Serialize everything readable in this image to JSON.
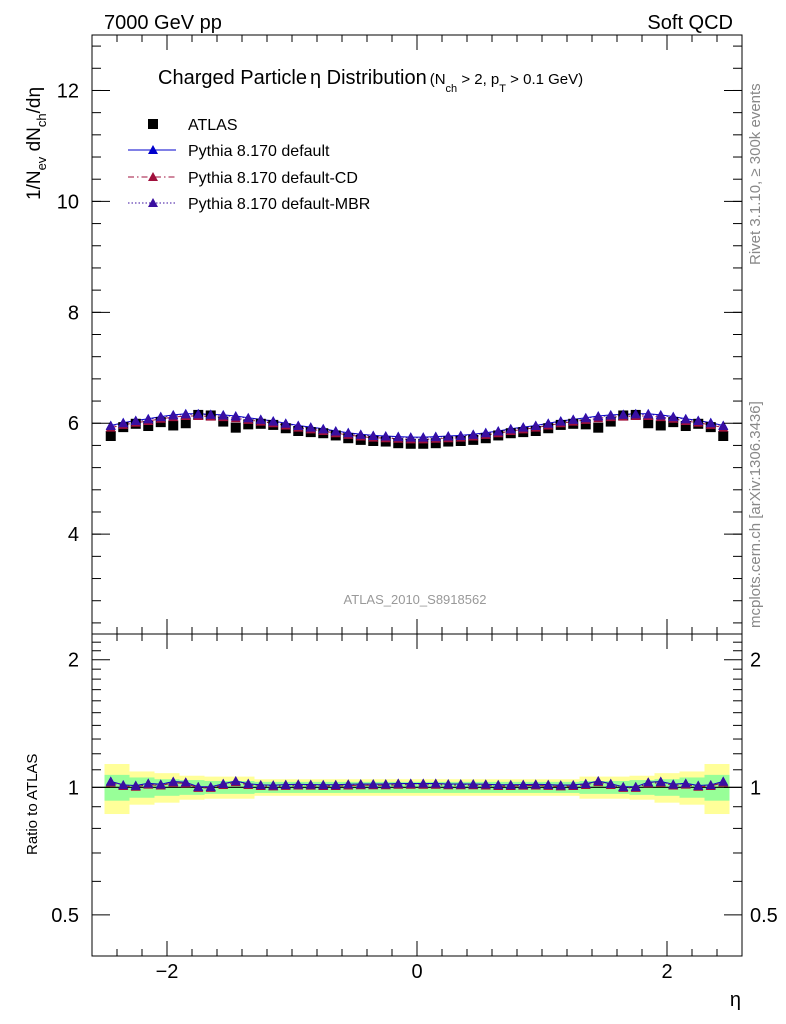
{
  "header": {
    "left": "7000 GeV pp",
    "right": "Soft QCD"
  },
  "title": {
    "main_a": "Charged Particle",
    "main_eta": "η",
    "main_b": " Distribution",
    "cond_open": "(N",
    "cond_ch_sub": "ch",
    "cond_mid": " > 2, p",
    "cond_t_sub": "T",
    "cond_close": " > 0.1 GeV)"
  },
  "ylabel_main": {
    "p1": "1/N",
    "s1": "ev",
    "p2": " dN",
    "s2": "ch",
    "p3": "/dη"
  },
  "ylabel_ratio": "Ratio to ATLAS",
  "xlabel": "η",
  "right_label_top": "Rivet 3.1.10, ≥ 300k events",
  "right_label_bottom": "mcplots.cern.ch [arXiv:1306.3436]",
  "analysis_label": "ATLAS_2010_S8918562",
  "legend": [
    {
      "label": "ATLAS",
      "marker": "square",
      "color": "#000000",
      "line": "none"
    },
    {
      "label": "Pythia 8.170 default",
      "marker": "triangle",
      "color": "#0000cc",
      "line": "solid"
    },
    {
      "label": "Pythia 8.170 default-CD",
      "marker": "triangle",
      "color": "#a0103c",
      "line": "dashdot"
    },
    {
      "label": "Pythia 8.170 default-MBR",
      "marker": "triangle",
      "color": "#3a0fa0",
      "line": "dotted"
    }
  ],
  "colors": {
    "band_inner": "#98ff98",
    "band_outer": "#ffff99",
    "atlas": "#000000",
    "default": "#0000cc",
    "cd": "#a0103c",
    "mbr": "#3a0fa0"
  },
  "chart_data": {
    "type": "scatter",
    "x": [
      -2.45,
      -2.35,
      -2.25,
      -2.15,
      -2.05,
      -1.95,
      -1.85,
      -1.75,
      -1.65,
      -1.55,
      -1.45,
      -1.35,
      -1.25,
      -1.15,
      -1.05,
      -0.95,
      -0.85,
      -0.75,
      -0.65,
      -0.55,
      -0.45,
      -0.35,
      -0.25,
      -0.15,
      -0.05,
      0.05,
      0.15,
      0.25,
      0.35,
      0.45,
      0.55,
      0.65,
      0.75,
      0.85,
      0.95,
      1.05,
      1.15,
      1.25,
      1.35,
      1.45,
      1.55,
      1.65,
      1.75,
      1.85,
      1.95,
      2.05,
      2.15,
      2.25,
      2.35,
      2.45
    ],
    "xlim": [
      -2.6,
      2.6
    ],
    "xticks": [
      -2,
      0,
      2
    ],
    "xtick_labels": [
      "−2",
      "0",
      "2"
    ],
    "main": {
      "ylim": [
        2.2,
        13.0
      ],
      "yticks": [
        4,
        6,
        8,
        10,
        12
      ],
      "ytick_labels": [
        "4",
        "6",
        "8",
        "10",
        "12"
      ],
      "series": [
        {
          "name": "ATLAS",
          "values": [
            5.77,
            5.93,
            5.99,
            5.95,
            6.02,
            5.96,
            6.0,
            6.15,
            6.14,
            6.03,
            5.92,
            5.98,
            5.99,
            5.97,
            5.91,
            5.86,
            5.84,
            5.82,
            5.78,
            5.73,
            5.7,
            5.68,
            5.67,
            5.64,
            5.63,
            5.63,
            5.64,
            5.67,
            5.68,
            5.7,
            5.73,
            5.78,
            5.82,
            5.84,
            5.86,
            5.91,
            5.97,
            5.99,
            5.98,
            5.92,
            6.03,
            6.14,
            6.15,
            6.0,
            5.96,
            6.02,
            5.95,
            5.99,
            5.93,
            5.77
          ]
        },
        {
          "name": "Pythia 8.170 default",
          "values": [
            5.96,
            6.01,
            6.05,
            6.08,
            6.12,
            6.15,
            6.17,
            6.17,
            6.16,
            6.15,
            6.13,
            6.1,
            6.07,
            6.04,
            6.0,
            5.96,
            5.93,
            5.9,
            5.86,
            5.83,
            5.8,
            5.78,
            5.77,
            5.76,
            5.75,
            5.75,
            5.76,
            5.77,
            5.78,
            5.8,
            5.83,
            5.86,
            5.9,
            5.93,
            5.96,
            6.0,
            6.04,
            6.07,
            6.1,
            6.13,
            6.15,
            6.16,
            6.17,
            6.17,
            6.15,
            6.12,
            6.08,
            6.05,
            6.01,
            5.96
          ]
        },
        {
          "name": "Pythia 8.170 default-CD",
          "values": [
            5.92,
            5.97,
            6.01,
            6.04,
            6.08,
            6.11,
            6.13,
            6.13,
            6.12,
            6.11,
            6.09,
            6.06,
            6.03,
            6.0,
            5.96,
            5.92,
            5.89,
            5.86,
            5.82,
            5.79,
            5.76,
            5.74,
            5.73,
            5.72,
            5.71,
            5.71,
            5.72,
            5.73,
            5.74,
            5.76,
            5.79,
            5.82,
            5.86,
            5.89,
            5.92,
            5.96,
            6.0,
            6.03,
            6.06,
            6.09,
            6.11,
            6.12,
            6.13,
            6.13,
            6.11,
            6.08,
            6.04,
            6.01,
            5.97,
            5.92
          ]
        },
        {
          "name": "Pythia 8.170 default-MBR",
          "values": [
            5.95,
            6.0,
            6.04,
            6.07,
            6.11,
            6.14,
            6.16,
            6.16,
            6.15,
            6.14,
            6.12,
            6.09,
            6.06,
            6.03,
            5.99,
            5.95,
            5.92,
            5.89,
            5.85,
            5.82,
            5.79,
            5.77,
            5.76,
            5.75,
            5.74,
            5.74,
            5.75,
            5.76,
            5.77,
            5.79,
            5.82,
            5.85,
            5.89,
            5.92,
            5.95,
            5.99,
            6.03,
            6.06,
            6.09,
            6.12,
            6.14,
            6.15,
            6.16,
            6.16,
            6.14,
            6.11,
            6.07,
            6.04,
            6.0,
            5.95
          ]
        }
      ]
    },
    "ratio": {
      "ylim": [
        0.4,
        2.3
      ],
      "yticks": [
        0.5,
        1,
        2
      ],
      "ytick_labels": [
        "0.5",
        "1",
        "2"
      ],
      "band_edges": [
        -2.5,
        -2.3,
        -2.1,
        -1.9,
        -1.7,
        -1.5,
        -1.3,
        1.3,
        1.5,
        1.7,
        1.9,
        2.1,
        2.3,
        2.5
      ],
      "band_inner_halfwidth": [
        0.07,
        0.055,
        0.045,
        0.04,
        0.035,
        0.035,
        0.03,
        0.035,
        0.035,
        0.04,
        0.045,
        0.055,
        0.07
      ],
      "band_outer_halfwidth": [
        0.135,
        0.09,
        0.08,
        0.065,
        0.06,
        0.06,
        0.045,
        0.06,
        0.06,
        0.065,
        0.08,
        0.09,
        0.135
      ],
      "series": [
        {
          "name": "Pythia 8.170 default",
          "values": [
            1.033,
            1.013,
            1.01,
            1.022,
            1.017,
            1.032,
            1.028,
            1.003,
            1.003,
            1.02,
            1.035,
            1.02,
            1.013,
            1.012,
            1.015,
            1.017,
            1.015,
            1.014,
            1.014,
            1.017,
            1.018,
            1.018,
            1.018,
            1.021,
            1.021,
            1.021,
            1.021,
            1.018,
            1.018,
            1.018,
            1.017,
            1.014,
            1.014,
            1.015,
            1.017,
            1.015,
            1.012,
            1.013,
            1.02,
            1.035,
            1.02,
            1.003,
            1.003,
            1.028,
            1.032,
            1.017,
            1.022,
            1.01,
            1.013,
            1.033
          ]
        },
        {
          "name": "Pythia 8.170 default-CD",
          "values": [
            1.026,
            1.007,
            1.003,
            1.015,
            1.01,
            1.025,
            1.022,
            0.997,
            0.997,
            1.013,
            1.029,
            1.013,
            1.007,
            1.005,
            1.008,
            1.01,
            1.009,
            1.007,
            1.007,
            1.01,
            1.011,
            1.011,
            1.011,
            1.014,
            1.014,
            1.014,
            1.014,
            1.011,
            1.011,
            1.011,
            1.01,
            1.007,
            1.007,
            1.009,
            1.01,
            1.008,
            1.005,
            1.007,
            1.013,
            1.029,
            1.013,
            0.997,
            0.997,
            1.022,
            1.025,
            1.01,
            1.015,
            1.003,
            1.007,
            1.026
          ]
        },
        {
          "name": "Pythia 8.170 default-MBR",
          "values": [
            1.031,
            1.012,
            1.008,
            1.02,
            1.015,
            1.03,
            1.027,
            1.002,
            1.002,
            1.018,
            1.034,
            1.018,
            1.012,
            1.01,
            1.013,
            1.015,
            1.014,
            1.012,
            1.012,
            1.016,
            1.016,
            1.016,
            1.016,
            1.02,
            1.02,
            1.02,
            1.02,
            1.016,
            1.016,
            1.016,
            1.016,
            1.012,
            1.012,
            1.014,
            1.015,
            1.013,
            1.01,
            1.012,
            1.018,
            1.034,
            1.018,
            1.002,
            1.002,
            1.027,
            1.03,
            1.015,
            1.02,
            1.008,
            1.012,
            1.031
          ]
        }
      ]
    }
  }
}
